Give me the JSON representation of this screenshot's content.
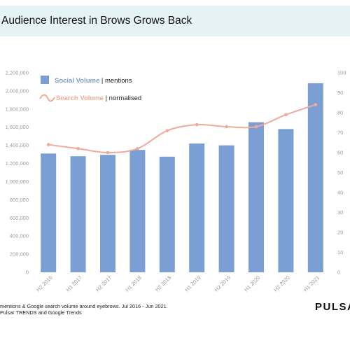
{
  "header": {
    "title": "Audience Interest in Brows Grows Back"
  },
  "chart_data": {
    "type": "bar",
    "title": "Audience Interest in Brows Grows Back",
    "categories": [
      "H2 2016",
      "H1 2017",
      "H2 2017",
      "H1 2018",
      "H2 2018",
      "H1 2019",
      "H2 2019",
      "H1 2020",
      "H2 2020",
      "H1 2021"
    ],
    "series": [
      {
        "name": "Social Volume",
        "type": "bar",
        "axis": "left",
        "color": "#7b9fd4",
        "values": [
          1310000,
          1280000,
          1295000,
          1350000,
          1275000,
          1420000,
          1400000,
          1655000,
          1580000,
          2085000
        ]
      },
      {
        "name": "Search Volume",
        "type": "line",
        "axis": "right",
        "color": "#f0aa9a",
        "values": [
          64,
          62,
          60,
          62,
          71,
          74,
          73,
          73,
          79,
          84
        ]
      }
    ],
    "y_left": {
      "min": 0,
      "max": 2200000,
      "step": 200000,
      "ticks": [
        "0",
        "200,000",
        "400,000",
        "600,000",
        "800,000",
        "1,000,000",
        "1,200,000",
        "1,400,000",
        "1,600,000",
        "1,800,000",
        "2,000,000",
        "2,200,000"
      ]
    },
    "y_right": {
      "min": 0,
      "max": 100,
      "step": 10,
      "ticks": [
        "0",
        "10",
        "20",
        "30",
        "40",
        "50",
        "60",
        "70",
        "80",
        "90",
        "100"
      ]
    },
    "legend": {
      "placement": "top-left",
      "items": [
        {
          "name": "Social Volume",
          "suffix": " | mentions",
          "marker": "square",
          "color": "#7b9fd4"
        },
        {
          "name": "Search Volume",
          "suffix": " | normalised",
          "marker": "wave",
          "color": "#f0aa9a"
        }
      ]
    },
    "grid": false
  },
  "footer": {
    "note_line1": "mentions & Google search volume around eyebrows. Jul 2016 - Jun 2021.",
    "note_line2": "Pulsar TRENDS and Google Trends",
    "logo": "PULSAR"
  }
}
